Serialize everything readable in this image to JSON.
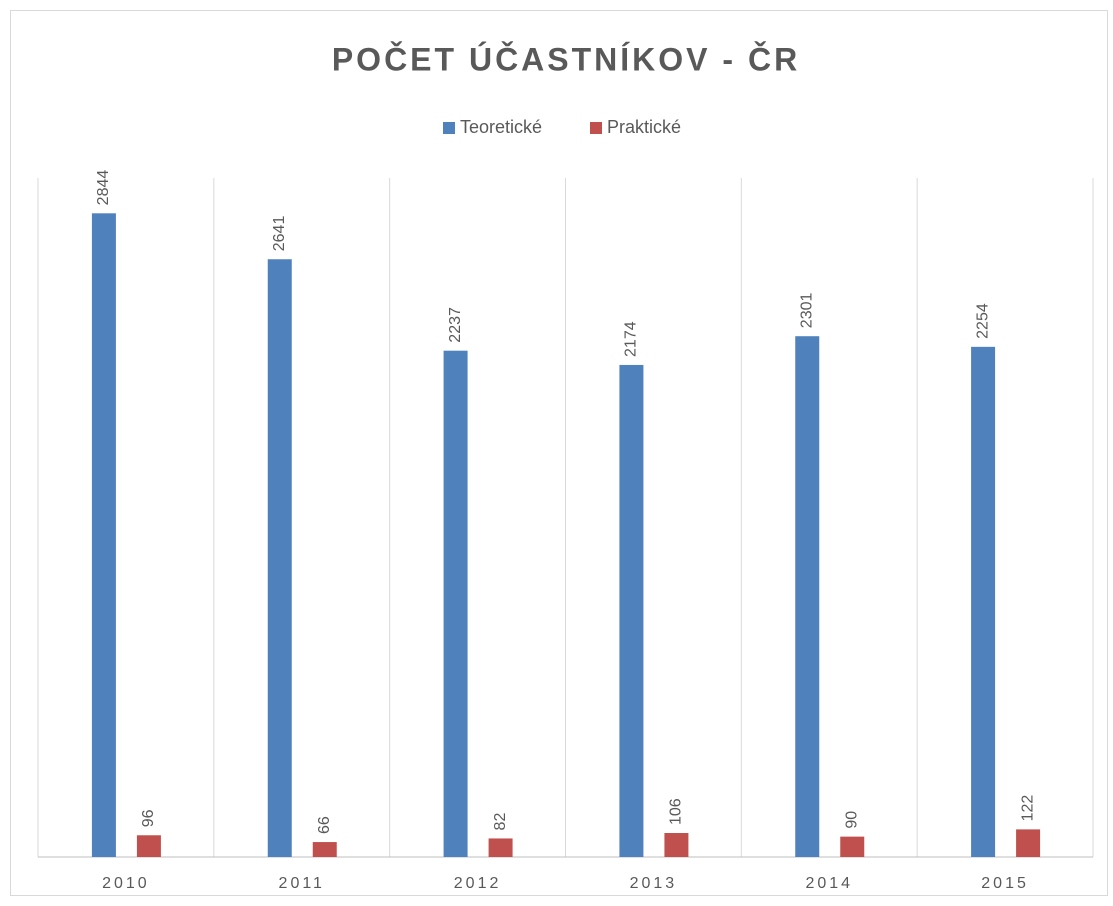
{
  "chart_data": {
    "type": "bar",
    "title": "POČET ÚČASTNÍKOV - ČR",
    "categories": [
      "2010",
      "2011",
      "2012",
      "2013",
      "2014",
      "2015"
    ],
    "series": [
      {
        "name": "Teoretické",
        "color": "#4f81bd",
        "values": [
          2844,
          2641,
          2237,
          2174,
          2301,
          2254
        ]
      },
      {
        "name": "Praktické",
        "color": "#c0504d",
        "values": [
          96,
          66,
          82,
          106,
          90,
          122
        ]
      }
    ],
    "ylim": [
      0,
      3000
    ],
    "legend": "top"
  }
}
